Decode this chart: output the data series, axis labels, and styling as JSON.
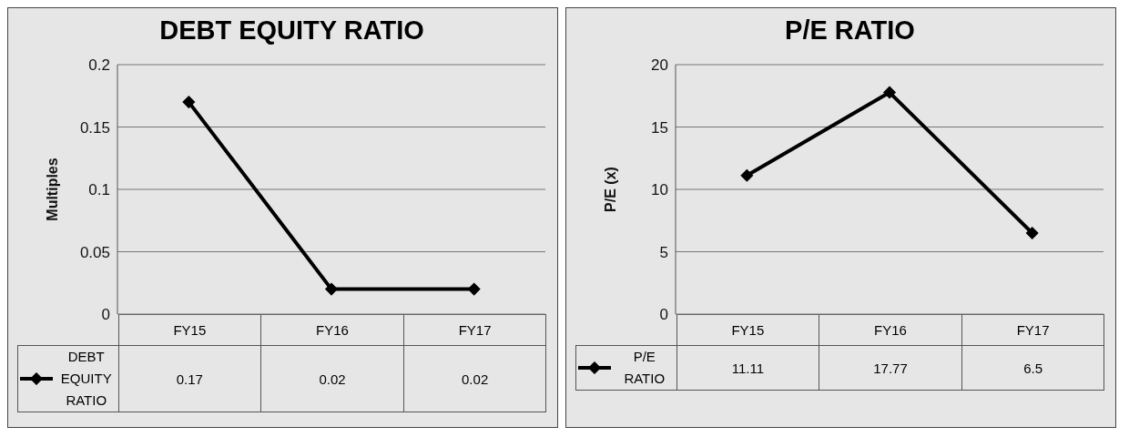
{
  "chart_data": [
    {
      "type": "line",
      "title": "DEBT EQUITY RATIO",
      "ylabel": "Multiples",
      "categories": [
        "FY15",
        "FY16",
        "FY17"
      ],
      "series": [
        {
          "name": "DEBT EQUITY RATIO",
          "color": "#000000",
          "values": [
            0.17,
            0.02,
            0.02
          ]
        }
      ],
      "ylim": [
        0,
        0.2
      ],
      "yticks": [
        0,
        0.05,
        0.1,
        0.15,
        0.2
      ],
      "grid": "y",
      "legend": "bottom",
      "marker": "diamond",
      "line_style": "solid",
      "data_labels": true
    },
    {
      "type": "line",
      "title": "P/E RATIO",
      "ylabel": "P/E (x)",
      "categories": [
        "FY15",
        "FY16",
        "FY17"
      ],
      "series": [
        {
          "name": "P/E RATIO",
          "color": "#000000",
          "values": [
            11.11,
            17.77,
            6.5
          ]
        }
      ],
      "ylim": [
        0,
        20
      ],
      "yticks": [
        0,
        5,
        10,
        15,
        20
      ],
      "grid": "y",
      "legend": "bottom",
      "marker": "diamond",
      "line_style": "solid",
      "data_labels": true
    }
  ]
}
